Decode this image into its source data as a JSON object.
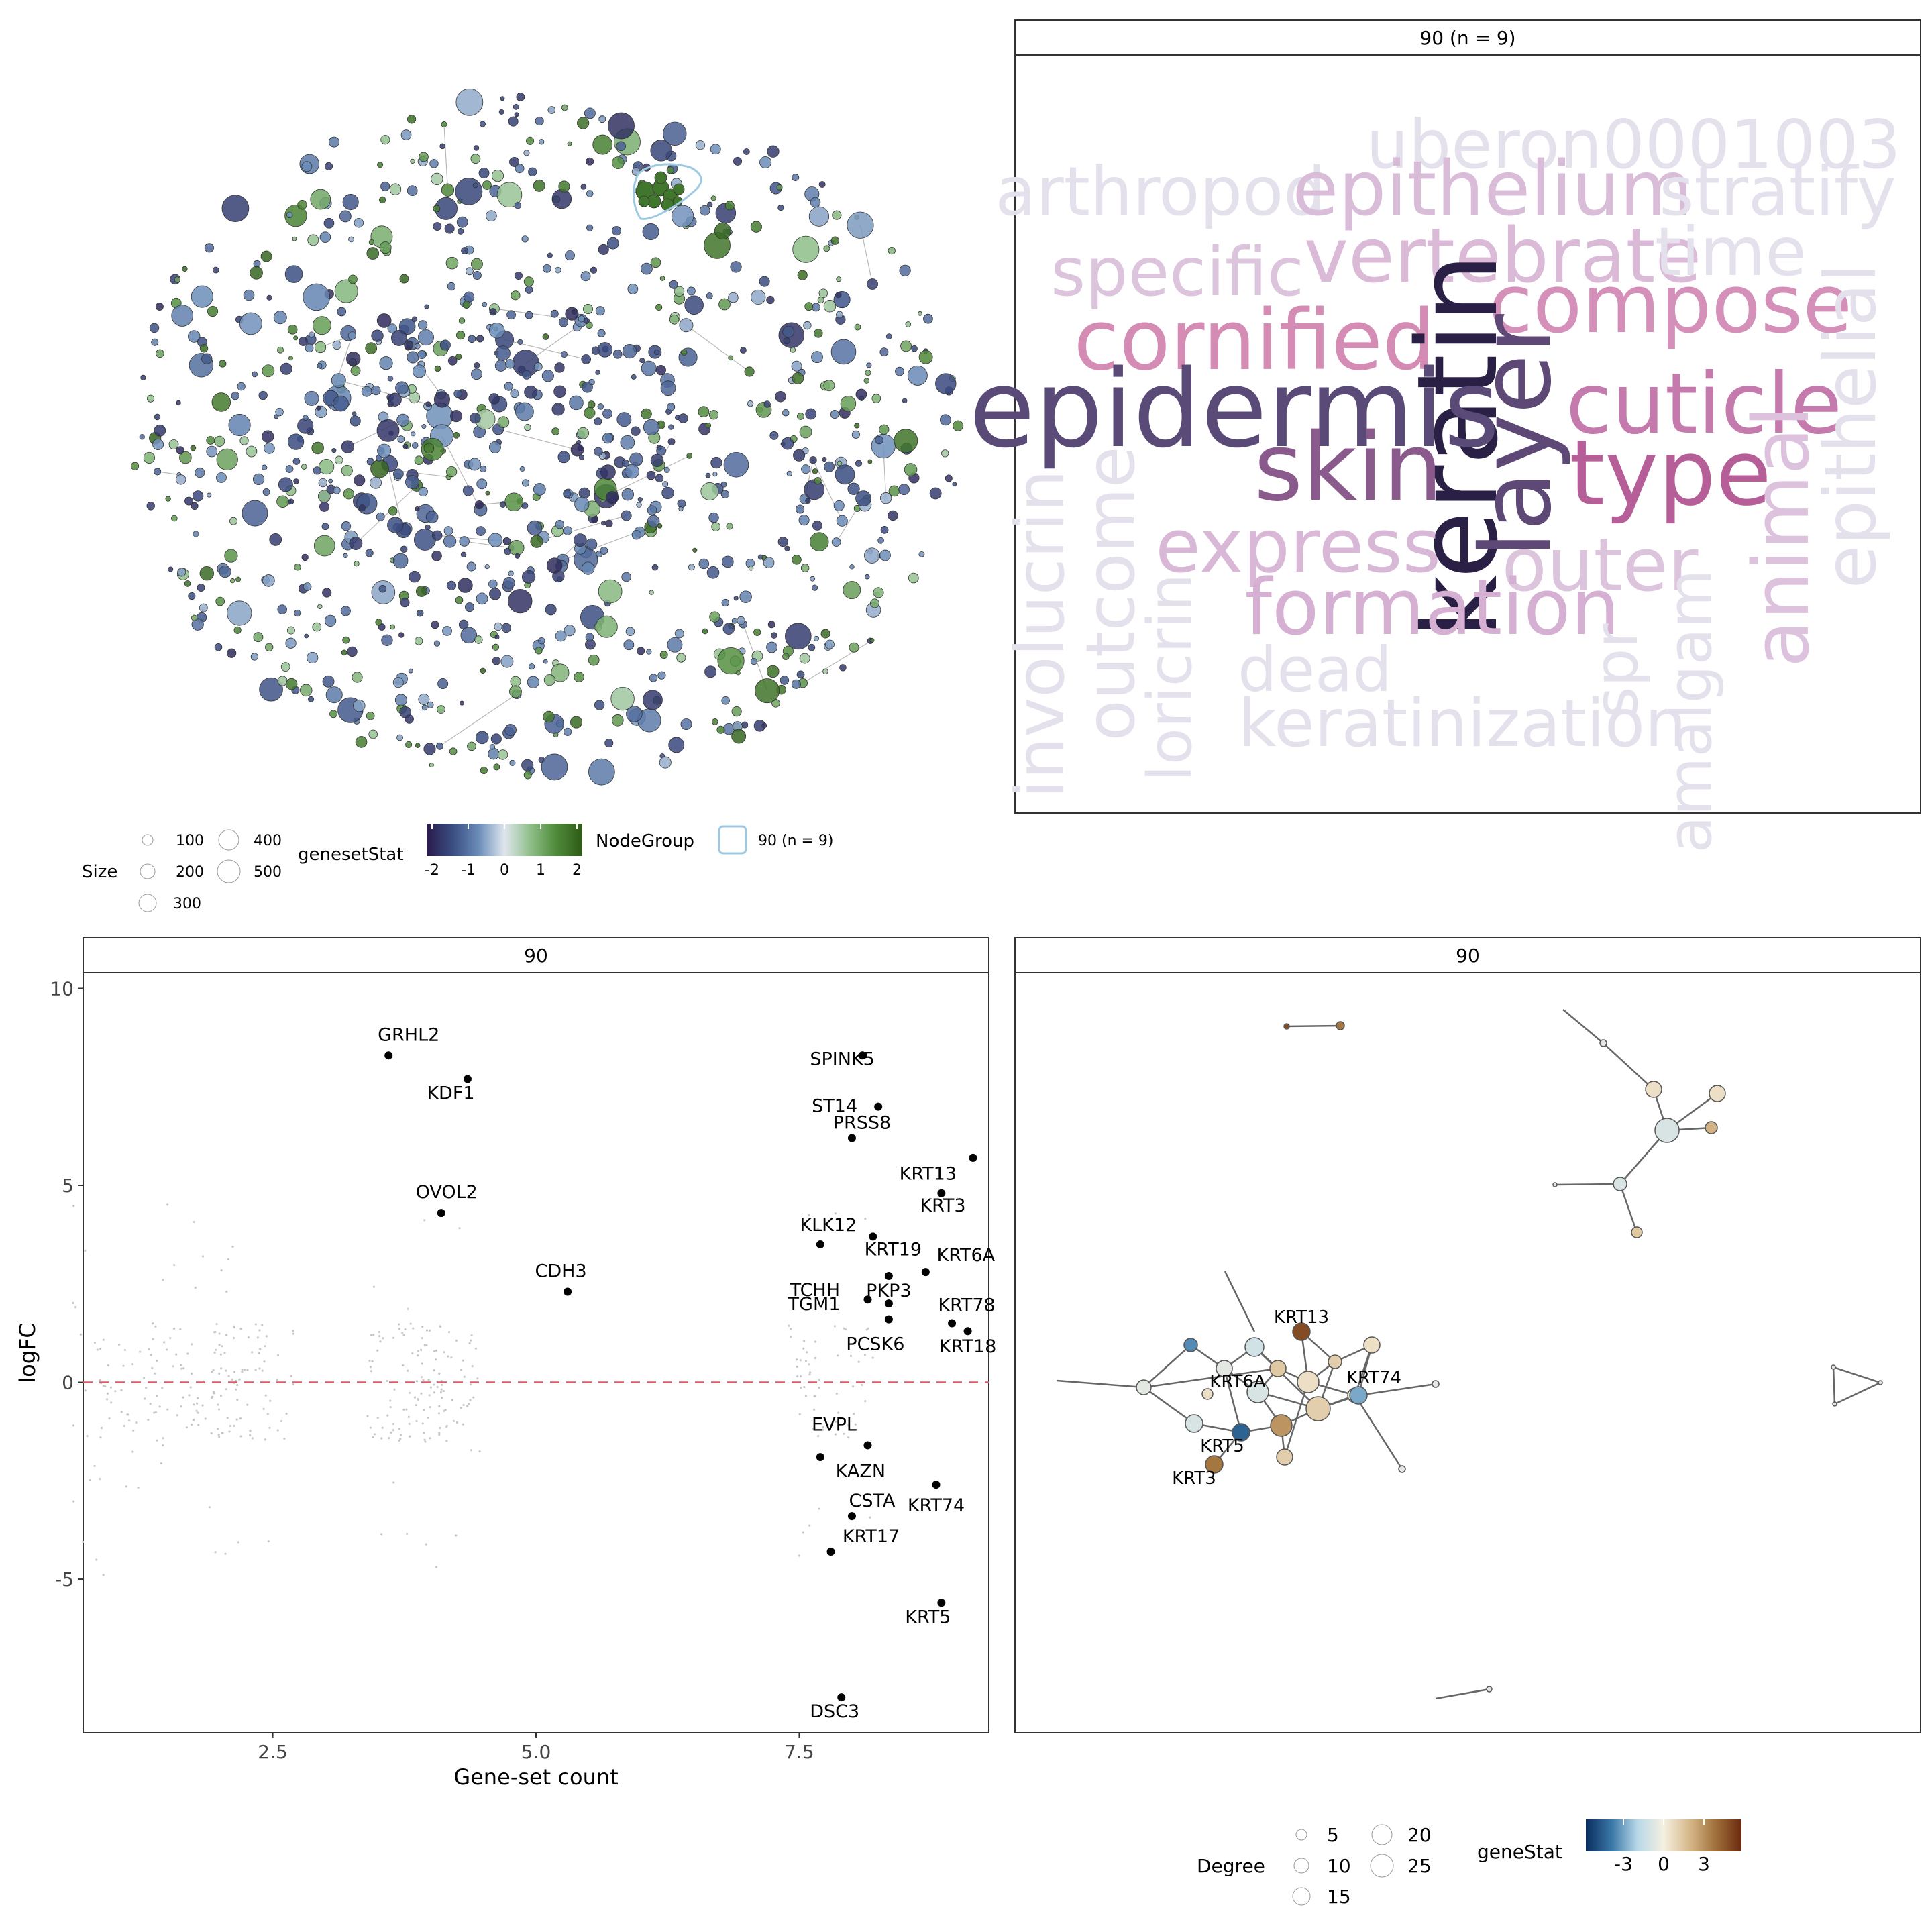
{
  "colors": {
    "geneset_scale": [
      "#2a1b4a",
      "#3a4d82",
      "#6a8cb8",
      "#dfe6ee",
      "#8fbf8a",
      "#4f8a3a",
      "#2d5a17"
    ],
    "gene_scale": [
      "#0a2d5e",
      "#3a78a8",
      "#b8d8e8",
      "#f5f0e0",
      "#d6b88a",
      "#a0703a",
      "#6b2a10"
    ],
    "node_outline": "#333333",
    "edge": "#888888",
    "hull": "#9ecae1",
    "zero_line": "#e05a6a",
    "point": "#000000",
    "background_points": "#c8c8c8"
  },
  "network_panel": {
    "legend": {
      "size_title": "Size",
      "size_values": [
        "100",
        "200",
        "300",
        "400",
        "500"
      ],
      "color_title": "genesetStat",
      "color_ticks": [
        "-2",
        "-1",
        "0",
        "1",
        "2"
      ],
      "group_title": "NodeGroup",
      "group_label": "90 (n = 9)"
    }
  },
  "wordcloud_panel": {
    "title": "90 (n = 9)",
    "words": [
      {
        "text": "uberon0001003",
        "color": "#e4e0ec"
      },
      {
        "text": "arthropod",
        "color": "#e4e0ec"
      },
      {
        "text": "epithelium",
        "color": "#d9bcd8"
      },
      {
        "text": "stratify",
        "color": "#e4e0ec"
      },
      {
        "text": "specific",
        "color": "#dcc4dc"
      },
      {
        "text": "vertebrate",
        "color": "#dbbad8"
      },
      {
        "text": "time",
        "color": "#e4e0ec"
      },
      {
        "text": "compose",
        "color": "#d490b8"
      },
      {
        "text": "cornified",
        "color": "#d48cb4"
      },
      {
        "text": "keratin",
        "color": "#2a1f45"
      },
      {
        "text": "layer",
        "color": "#5e4876"
      },
      {
        "text": "epidermis",
        "color": "#5a4a78"
      },
      {
        "text": "cuticle",
        "color": "#c47aac"
      },
      {
        "text": "epithelial",
        "color": "#e4e0ec"
      },
      {
        "text": "skin",
        "color": "#8a5a8c"
      },
      {
        "text": "type",
        "color": "#b65e98"
      },
      {
        "text": "animal",
        "color": "#dcc2dc"
      },
      {
        "text": "involucrin",
        "color": "#e4e0ec"
      },
      {
        "text": "outcome",
        "color": "#e4e0ec"
      },
      {
        "text": "express",
        "color": "#d8b8d6"
      },
      {
        "text": "outer",
        "color": "#dcc4dc"
      },
      {
        "text": "loricrin",
        "color": "#e4e0ec"
      },
      {
        "text": "formation",
        "color": "#d6b0d2"
      },
      {
        "text": "dead",
        "color": "#e4e0ec"
      },
      {
        "text": "spr",
        "color": "#e4e0ec"
      },
      {
        "text": "amalgam",
        "color": "#e4e0ec"
      },
      {
        "text": "keratinization",
        "color": "#e4e0ec"
      }
    ]
  },
  "chart_data": [
    {
      "type": "scatter",
      "title": "90",
      "xlabel": "Gene-set count",
      "ylabel": "logFC",
      "xlim": [
        0.7,
        9.3
      ],
      "ylim": [
        -8.9,
        10.4
      ],
      "x_ticks": [
        "2.5",
        "5.0",
        "7.5"
      ],
      "y_ticks": [
        "-5",
        "0",
        "5",
        "10"
      ],
      "zero_line": 0,
      "labeled_points": [
        {
          "label": "GRHL2",
          "x": 3.6,
          "y": 8.3
        },
        {
          "label": "KDF1",
          "x": 4.35,
          "y": 7.7
        },
        {
          "label": "OVOL2",
          "x": 4.1,
          "y": 4.3
        },
        {
          "label": "CDH3",
          "x": 5.3,
          "y": 2.3
        },
        {
          "label": "SPINK5",
          "x": 8.1,
          "y": 8.3
        },
        {
          "label": "ST14",
          "x": 8.25,
          "y": 7.0
        },
        {
          "label": "PRSS8",
          "x": 8.0,
          "y": 6.2
        },
        {
          "label": "KRT13",
          "x": 8.85,
          "y": 4.8
        },
        {
          "label": "KRT3",
          "x": 9.15,
          "y": 5.7
        },
        {
          "label": "KLK12",
          "x": 7.7,
          "y": 3.5
        },
        {
          "label": "KRT19",
          "x": 8.2,
          "y": 3.7
        },
        {
          "label": "KRT6A",
          "x": 8.7,
          "y": 2.8
        },
        {
          "label": "TCHH",
          "x": 8.35,
          "y": 2.7
        },
        {
          "label": "PKP3",
          "x": 8.35,
          "y": 2.0
        },
        {
          "label": "TGM1",
          "x": 8.15,
          "y": 2.1
        },
        {
          "label": "PCSK6",
          "x": 8.35,
          "y": 1.6
        },
        {
          "label": "KRT78",
          "x": 8.95,
          "y": 1.5
        },
        {
          "label": "KRT18",
          "x": 9.1,
          "y": 1.3
        },
        {
          "label": "EVPL",
          "x": 8.15,
          "y": -1.6
        },
        {
          "label": "KAZN",
          "x": 7.7,
          "y": -1.9
        },
        {
          "label": "KRT74",
          "x": 8.8,
          "y": -2.6
        },
        {
          "label": "CSTA",
          "x": 8.0,
          "y": -3.4
        },
        {
          "label": "KRT17",
          "x": 7.8,
          "y": -4.3
        },
        {
          "label": "KRT5",
          "x": 8.85,
          "y": -5.6
        },
        {
          "label": "DSC3",
          "x": 7.9,
          "y": -8.0
        }
      ]
    }
  ],
  "gene_network_panel": {
    "title": "90",
    "labels": [
      "KRT13",
      "KRT6A",
      "KRT74",
      "KRT5",
      "KRT3"
    ],
    "legend": {
      "size_title": "Degree",
      "size_values": [
        "5",
        "10",
        "15",
        "20",
        "25"
      ],
      "color_title": "geneStat",
      "color_ticks": [
        "-3",
        "0",
        "3"
      ]
    }
  }
}
